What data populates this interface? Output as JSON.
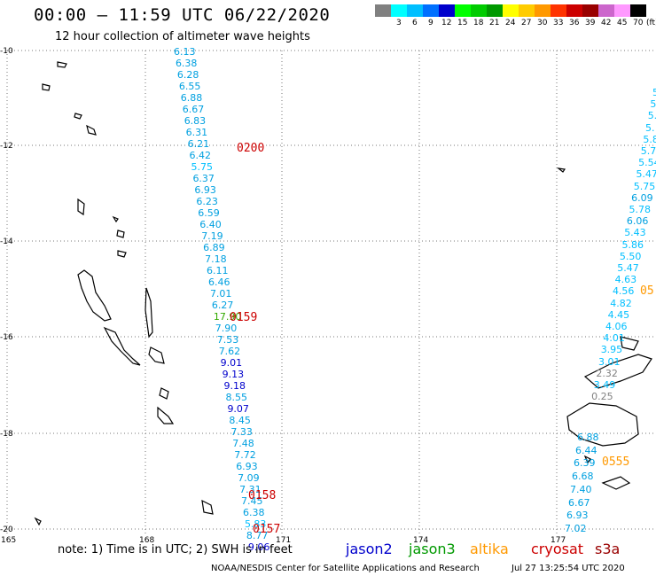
{
  "header": {
    "title": "00:00 – 11:59 UTC 06/22/2020",
    "subtitle": "12 hour collection of altimeter wave heights"
  },
  "legend": {
    "unit": "(ft)",
    "swatches": [
      {
        "color": "#808080",
        "label": ""
      },
      {
        "color": "#00ffff",
        "label": "3"
      },
      {
        "color": "#00bfff",
        "label": "6"
      },
      {
        "color": "#0070ff",
        "label": "9"
      },
      {
        "color": "#0000cc",
        "label": "12"
      },
      {
        "color": "#00ff00",
        "label": "15"
      },
      {
        "color": "#00cc00",
        "label": "18"
      },
      {
        "color": "#009900",
        "label": "21"
      },
      {
        "color": "#ffff00",
        "label": "24"
      },
      {
        "color": "#ffcc00",
        "label": "27"
      },
      {
        "color": "#ff9900",
        "label": "30"
      },
      {
        "color": "#ff3300",
        "label": "33"
      },
      {
        "color": "#cc0000",
        "label": "36"
      },
      {
        "color": "#990000",
        "label": "39"
      },
      {
        "color": "#cc66cc",
        "label": "42"
      },
      {
        "color": "#ff99ff",
        "label": "45"
      },
      {
        "color": "#000000",
        "label": "70"
      }
    ]
  },
  "axes": {
    "lat_labels": [
      "-10",
      "-12",
      "-14",
      "-16",
      "-18",
      "-20"
    ],
    "lon_labels": [
      "165",
      "168",
      "171",
      "174",
      "177"
    ]
  },
  "track_west": {
    "values": [
      "6.13",
      "6.38",
      "6.28",
      "6.55",
      "6.88",
      "6.67",
      "6.83",
      "6.31",
      "6.21",
      "6.42",
      "5.75",
      "6.37",
      "6.93",
      "6.23",
      "6.59",
      "6.40",
      "7.19",
      "6.89",
      "7.18",
      "6.11",
      "6.46",
      "7.01",
      "6.27",
      "17.90",
      "7.90",
      "7.53",
      "7.62",
      "9.01",
      "9.13",
      "9.18",
      "8.55",
      "9.07",
      "8.45",
      "7.33",
      "7.48",
      "7.72",
      "6.93",
      "7.09",
      "7.31",
      "7.45",
      "6.38",
      "5.83",
      "8.77",
      "9.06"
    ],
    "times": [
      "0200",
      "0159",
      "0158",
      "0157"
    ]
  },
  "track_east": {
    "values": [
      "5",
      "5.",
      "5.",
      "5.",
      "5.8",
      "5.7",
      "5.54",
      "5.47",
      "5.75",
      "6.09",
      "5.78",
      "6.06",
      "5.43",
      "5.86",
      "5.50",
      "5.47",
      "4.63",
      "4.56",
      "4.82",
      "4.45",
      "4.06",
      "4.01",
      "3.95",
      "3.01",
      "2.32",
      "3.49",
      "0.25"
    ],
    "times": [
      "05",
      "0555"
    ]
  },
  "track_south": {
    "values": [
      "6.88",
      "6.44",
      "6.39",
      "6.68",
      "7.40",
      "6.67",
      "6.93",
      "7.02"
    ]
  },
  "notes": {
    "note": "note: 1) Time is in UTC; 2) SWH is in feet",
    "footer": "NOAA/NESDIS Center for Satellite Applications and Research",
    "timestamp": "Jul 27 13:25:54 UTC 2020"
  },
  "satellites": [
    {
      "name": "jason2",
      "color": "#0000cc"
    },
    {
      "name": "jason3",
      "color": "#009900"
    },
    {
      "name": "altika",
      "color": "#ff9900"
    },
    {
      "name": "cryosat",
      "color": "#cc0000"
    },
    {
      "name": "s3a",
      "color": "#990000"
    }
  ]
}
